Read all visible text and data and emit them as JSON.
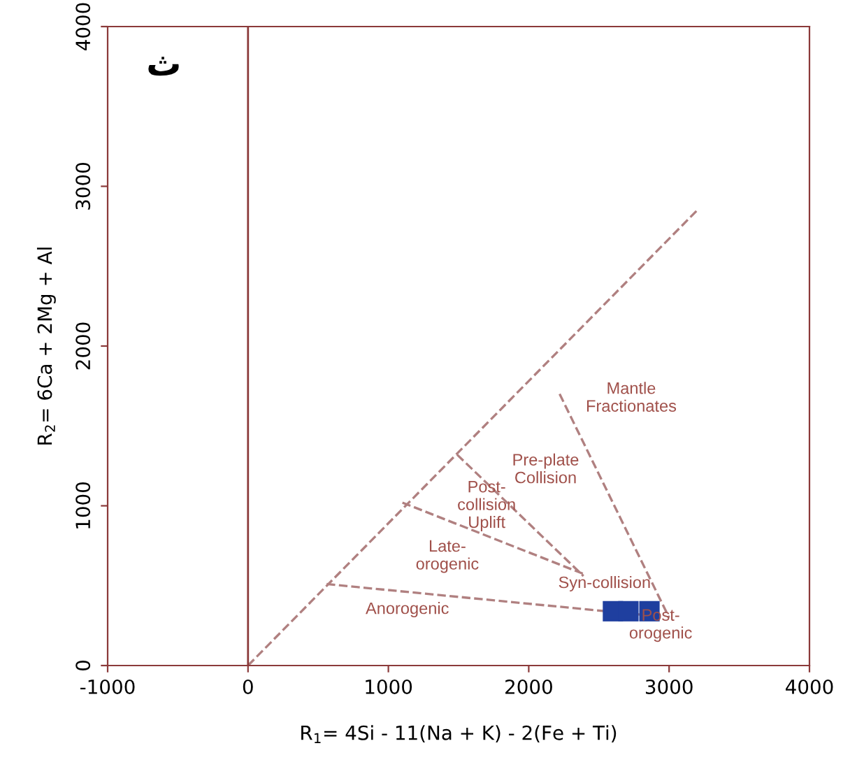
{
  "chart_data": {
    "type": "scatter",
    "xlabel": "R$_{1}$= 4Si - 11(Na + K) - 2(Fe + Ti)",
    "ylabel": "R$_{2}$= 6Ca + 2Mg + Al",
    "xlim": [
      -1000,
      4000
    ],
    "ylim": [
      0,
      4000
    ],
    "xticks": [
      -1000,
      0,
      1000,
      2000,
      3000,
      4000
    ],
    "yticks": [
      0,
      1000,
      2000,
      3000,
      4000
    ],
    "grid": false,
    "legend": false,
    "marker": "square",
    "ref_lines": [
      {
        "axis": "x",
        "value": 0,
        "color": "#8b3a3a",
        "line_style": "solid"
      }
    ],
    "series": [
      {
        "color": "#1f3f9f",
        "x": [
          2600,
          2710,
          2860
        ],
        "values": [
          340,
          340,
          340
        ]
      },
      {
        "type": "line",
        "color": "#b08080",
        "line_style": "dashed",
        "marker": "none",
        "x": [
          0,
          3200
        ],
        "values": [
          0,
          2850
        ]
      },
      {
        "type": "line",
        "color": "#b08080",
        "line_style": "dashed",
        "marker": "none",
        "x": [
          560,
          2900
        ],
        "values": [
          510,
          310
        ]
      },
      {
        "type": "line",
        "color": "#b08080",
        "line_style": "dashed",
        "marker": "none",
        "x": [
          2220,
          3000
        ],
        "values": [
          1700,
          300
        ]
      },
      {
        "type": "line",
        "color": "#b08080",
        "line_style": "dashed",
        "marker": "none",
        "x": [
          1490,
          2390
        ],
        "values": [
          1320,
          560
        ]
      },
      {
        "type": "line",
        "color": "#b08080",
        "line_style": "dashed",
        "marker": "none",
        "x": [
          1100,
          2400
        ],
        "values": [
          1020,
          570
        ]
      }
    ],
    "annotations": [
      "ث",
      "Mantle\nFractionates",
      "Pre-plate\nCollision",
      "Post-\ncollision\nUplift",
      "Late-\norogenic",
      "Syn-collision",
      "Anorogenic",
      "Post-\norogenic"
    ]
  }
}
